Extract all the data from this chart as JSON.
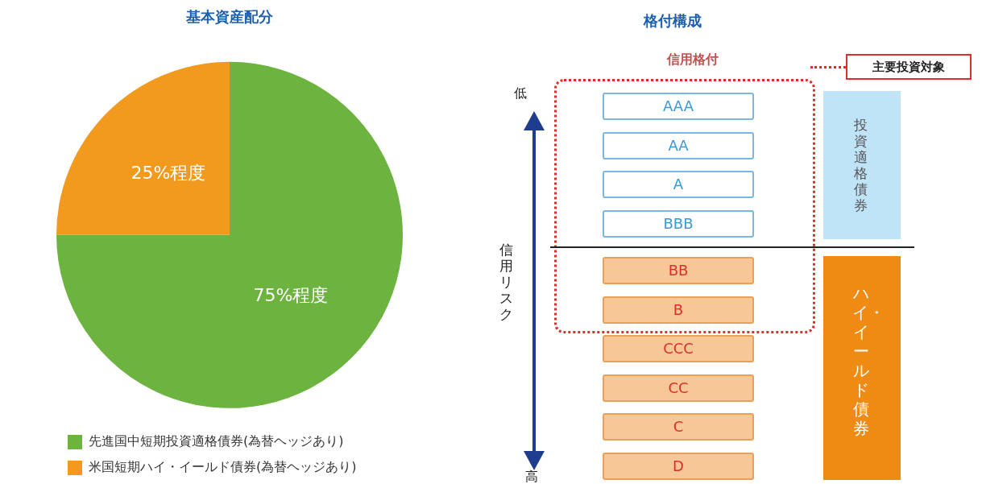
{
  "chart_data": [
    {
      "type": "pie",
      "title": "基本資産配分",
      "categories": [
        "先進国中短期投資適格債券(為替ヘッジあり)",
        "米国短期ハイ・イールド債券(為替ヘッジあり)"
      ],
      "values": [
        75,
        25
      ],
      "colors": [
        "#6db33f",
        "#f29a1d"
      ],
      "value_labels": [
        "75%程度",
        "25%程度"
      ],
      "legend": "bottom left"
    },
    {
      "type": "other",
      "title": "格付構成",
      "categories": [
        "AAA",
        "AA",
        "A",
        "BBB",
        "BB",
        "B",
        "CCC",
        "CC",
        "C",
        "D"
      ],
      "colors": [
        "#ffffff",
        "#ffffff",
        "#ffffff",
        "#ffffff",
        "#f8c797",
        "#f8c797",
        "#f8c797",
        "#f8c797",
        "#f8c797",
        "#f8c797"
      ],
      "annotations": [
        "信用格付",
        "主要投資対象",
        "低",
        "信用リスク",
        "高",
        "投資適格債券",
        "ハイ・イールド債券"
      ]
    }
  ]
}
